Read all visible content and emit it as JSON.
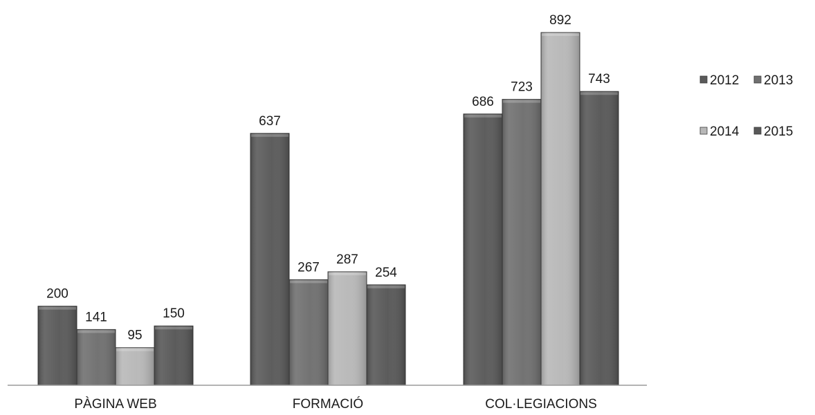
{
  "chart_data": {
    "type": "bar",
    "categories": [
      "PÀGINA WEB",
      "FORMACIÓ",
      "COL·LEGIACIONS"
    ],
    "series": [
      {
        "name": "2012",
        "values": [
          200,
          637,
          686
        ],
        "color": "#5a5a5a"
      },
      {
        "name": "2013",
        "values": [
          141,
          267,
          723
        ],
        "color": "#707070"
      },
      {
        "name": "2014",
        "values": [
          95,
          287,
          892
        ],
        "color": "#b8b8b8"
      },
      {
        "name": "2015",
        "values": [
          150,
          254,
          743
        ],
        "color": "#585858"
      }
    ],
    "ylim": [
      0,
      892
    ],
    "grid": false,
    "legend_position": "right",
    "data_labels": true
  }
}
